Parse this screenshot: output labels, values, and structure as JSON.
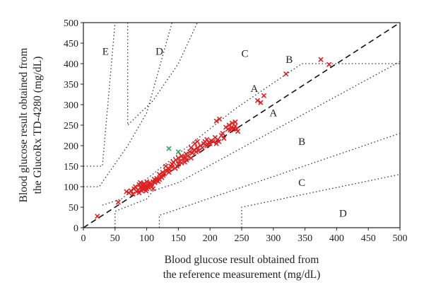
{
  "chart_data": {
    "type": "scatter",
    "title": "",
    "xlabel": [
      "Blood glucose result obtained from",
      "the reference measurement (mg/dL)"
    ],
    "ylabel": [
      "Blood glucose result obtained from",
      "the GlucoRx TD-4280 (mg/dL)"
    ],
    "xlim": [
      0,
      500
    ],
    "ylim": [
      0,
      500
    ],
    "x_ticks": [
      "0",
      "50",
      "100",
      "150",
      "200",
      "250",
      "300",
      "350",
      "400",
      "450",
      "500"
    ],
    "y_ticks": [
      "0",
      "50",
      "100",
      "150",
      "200",
      "250",
      "300",
      "350",
      "400",
      "450",
      "500"
    ],
    "grid": false,
    "legend": "none",
    "identity_line": [
      [
        0,
        0
      ],
      [
        500,
        500
      ]
    ],
    "zone_boundaries": [
      [
        [
          0,
          150
        ],
        [
          30,
          150
        ],
        [
          50,
          500
        ]
      ],
      [
        [
          0,
          100
        ],
        [
          25,
          100
        ],
        [
          70,
          200
        ],
        [
          100,
          280
        ],
        [
          140,
          500
        ]
      ],
      [
        [
          70,
          500
        ],
        [
          70,
          250
        ],
        [
          110,
          310
        ],
        [
          150,
          400
        ],
        [
          180,
          500
        ]
      ],
      [
        [
          30,
          55
        ],
        [
          60,
          70
        ],
        [
          240,
          290
        ],
        [
          345,
          400
        ],
        [
          500,
          400
        ]
      ],
      [
        [
          120,
          0
        ],
        [
          120,
          30
        ],
        [
          500,
          230
        ]
      ],
      [
        [
          250,
          0
        ],
        [
          250,
          50
        ],
        [
          500,
          130
        ]
      ],
      [
        [
          50,
          0
        ],
        [
          50,
          40
        ],
        [
          100,
          70
        ],
        [
          110,
          90
        ],
        [
          150,
          110
        ],
        [
          500,
          405
        ]
      ]
    ],
    "zone_labels": [
      {
        "text": "E",
        "x": 35,
        "y": 430
      },
      {
        "text": "D",
        "x": 120,
        "y": 430
      },
      {
        "text": "C",
        "x": 255,
        "y": 425
      },
      {
        "text": "B",
        "x": 325,
        "y": 410
      },
      {
        "text": "A",
        "x": 270,
        "y": 340
      },
      {
        "text": "A",
        "x": 300,
        "y": 280
      },
      {
        "text": "B",
        "x": 345,
        "y": 210
      },
      {
        "text": "C",
        "x": 345,
        "y": 110
      },
      {
        "text": "D",
        "x": 410,
        "y": 35
      }
    ],
    "series": [
      {
        "color": "#e02020",
        "x": [
          22,
          55,
          68,
          72,
          75,
          78,
          80,
          82,
          84,
          86,
          88,
          88,
          90,
          90,
          92,
          93,
          94,
          95,
          95,
          96,
          97,
          98,
          99,
          100,
          100,
          101,
          102,
          103,
          104,
          105,
          106,
          107,
          108,
          110,
          110,
          112,
          113,
          115,
          116,
          118,
          120,
          120,
          122,
          124,
          125,
          126,
          128,
          130,
          130,
          132,
          134,
          135,
          136,
          138,
          140,
          140,
          142,
          145,
          146,
          148,
          150,
          150,
          152,
          155,
          155,
          158,
          160,
          160,
          162,
          163,
          165,
          168,
          170,
          170,
          172,
          175,
          176,
          178,
          180,
          180,
          182,
          185,
          188,
          190,
          192,
          195,
          195,
          198,
          200,
          202,
          205,
          208,
          210,
          212,
          214,
          218,
          220,
          222,
          225,
          228,
          230,
          232,
          234,
          235,
          238,
          240,
          240,
          242,
          244,
          210,
          215,
          275,
          280,
          285,
          320,
          375,
          388
        ],
        "y": [
          28,
          62,
          88,
          85,
          90,
          82,
          95,
          100,
          88,
          92,
          85,
          105,
          98,
          110,
          90,
          95,
          100,
          93,
          105,
          108,
          98,
          102,
          90,
          95,
          112,
          100,
          104,
          98,
          108,
          110,
          103,
          106,
          100,
          112,
          95,
          118,
          110,
          115,
          120,
          113,
          118,
          130,
          125,
          122,
          135,
          128,
          132,
          140,
          150,
          138,
          145,
          135,
          142,
          150,
          148,
          155,
          160,
          145,
          165,
          150,
          155,
          170,
          162,
          175,
          158,
          168,
          172,
          160,
          180,
          165,
          175,
          185,
          170,
          195,
          182,
          190,
          205,
          185,
          195,
          210,
          188,
          200,
          195,
          205,
          210,
          200,
          215,
          208,
          205,
          212,
          210,
          220,
          205,
          215,
          210,
          225,
          230,
          218,
          245,
          240,
          250,
          238,
          245,
          255,
          242,
          248,
          258,
          240,
          235,
          260,
          265,
          310,
          305,
          322,
          375,
          410,
          398
        ]
      },
      {
        "color": "#2aa860",
        "x": [
          135,
          150
        ],
        "y": [
          193,
          185
        ]
      }
    ]
  }
}
